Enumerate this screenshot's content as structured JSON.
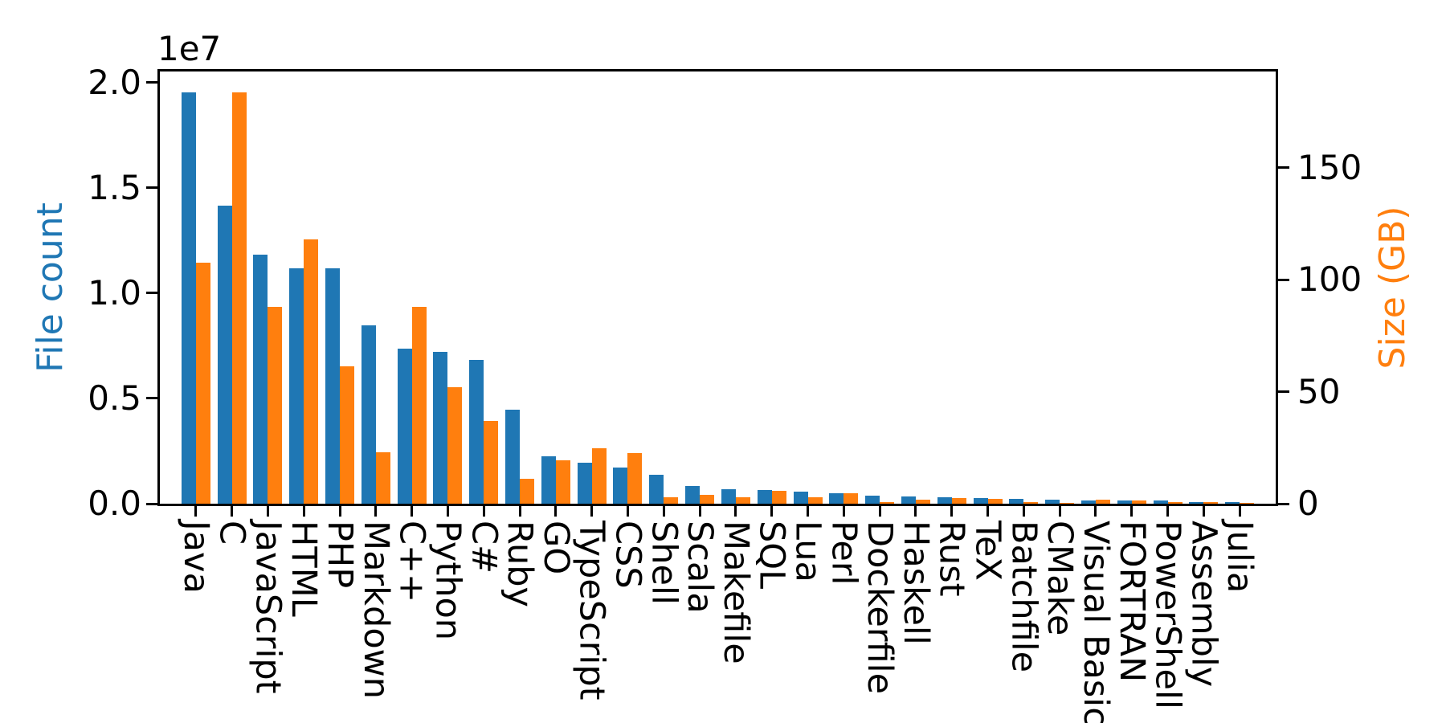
{
  "chart_data": {
    "type": "bar",
    "title": "",
    "grid": false,
    "legend": "none",
    "x_tick_rotation": 90,
    "categories": [
      "Java",
      "C",
      "JavaScript",
      "HTML",
      "PHP",
      "Markdown",
      "C++",
      "Python",
      "C#",
      "Ruby",
      "GO",
      "TypeScript",
      "CSS",
      "Shell",
      "Scala",
      "Makefile",
      "SQL",
      "Lua",
      "Perl",
      "Dockerfile",
      "Haskell",
      "Rust",
      "TeX",
      "Batchfile",
      "CMake",
      "Visual Basic",
      "FORTRAN",
      "PowerShell",
      "Assembly",
      "Julia"
    ],
    "series": [
      {
        "name": "File count",
        "axis": "left",
        "color": "#1f77b4",
        "values": [
          19548190,
          14143113,
          11839883,
          11178557,
          11177610,
          8464626,
          7380520,
          7226626,
          6811652,
          4473331,
          2265436,
          1940406,
          1734406,
          1385648,
          835755,
          679430,
          656671,
          578554,
          497949,
          366505,
          340623,
          322431,
          251015,
          236945,
          175282,
          155652,
          142038,
          136846,
          82905,
          58317
        ]
      },
      {
        "name": "Size (GB)",
        "axis": "right",
        "color": "#ff7f0e",
        "values": [
          107.7,
          183.83,
          87.82,
          118.12,
          61.41,
          23.09,
          87.73,
          52.03,
          36.83,
          10.95,
          19.28,
          24.59,
          22.61,
          3.01,
          3.87,
          2.92,
          5.67,
          2.81,
          4.7,
          0.71,
          1.85,
          2.68,
          2.15,
          0.7,
          0.54,
          1.91,
          1.62,
          0.69,
          0.78,
          0.29
        ]
      }
    ],
    "left_axis": {
      "label": "File count",
      "color": "#1f77b4",
      "offset_text": "1e7",
      "tick_labels": [
        "0.0",
        "0.5",
        "1.0",
        "1.5",
        "2.0"
      ],
      "tick_values": [
        0,
        5000000,
        10000000,
        15000000,
        20000000
      ],
      "range": [
        0,
        20525600
      ]
    },
    "right_axis": {
      "label": "Size (GB)",
      "color": "#ff7f0e",
      "tick_labels": [
        "0",
        "50",
        "100",
        "150"
      ],
      "tick_values": [
        0,
        50,
        100,
        150
      ],
      "range": [
        0,
        193.02
      ]
    }
  }
}
